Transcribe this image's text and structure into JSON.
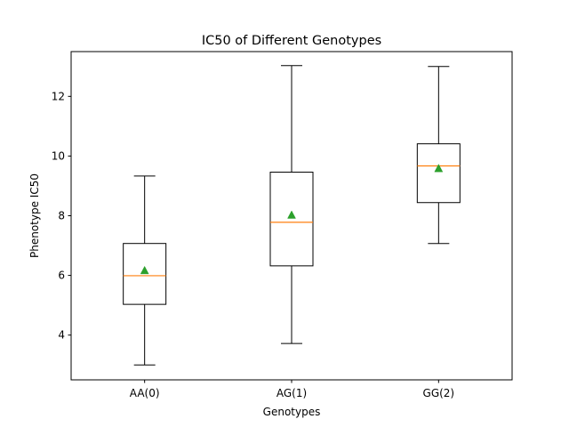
{
  "chart_data": {
    "type": "boxplot",
    "title": "IC50 of Different Genotypes",
    "xlabel": "Genotypes",
    "ylabel": "Phenotype IC50",
    "categories": [
      "AA(0)",
      "AG(1)",
      "GG(2)"
    ],
    "ylim": [
      2.5,
      13.5
    ],
    "yticks": [
      4,
      6,
      8,
      10,
      12
    ],
    "grid": false,
    "boxes": [
      {
        "label": "AA(0)",
        "whisker_low": 3.0,
        "q1": 5.03,
        "median": 5.99,
        "q3": 7.07,
        "whisker_high": 9.33,
        "mean": 6.17
      },
      {
        "label": "AG(1)",
        "whisker_low": 3.72,
        "q1": 6.32,
        "median": 7.78,
        "q3": 9.46,
        "whisker_high": 13.03,
        "mean": 8.03
      },
      {
        "label": "GG(2)",
        "whisker_low": 7.07,
        "q1": 8.44,
        "median": 9.67,
        "q3": 10.41,
        "whisker_high": 13.0,
        "mean": 9.59
      }
    ],
    "colors": {
      "box": "#000000",
      "median": "#ff7f0e",
      "mean": "#2ca02c"
    }
  }
}
